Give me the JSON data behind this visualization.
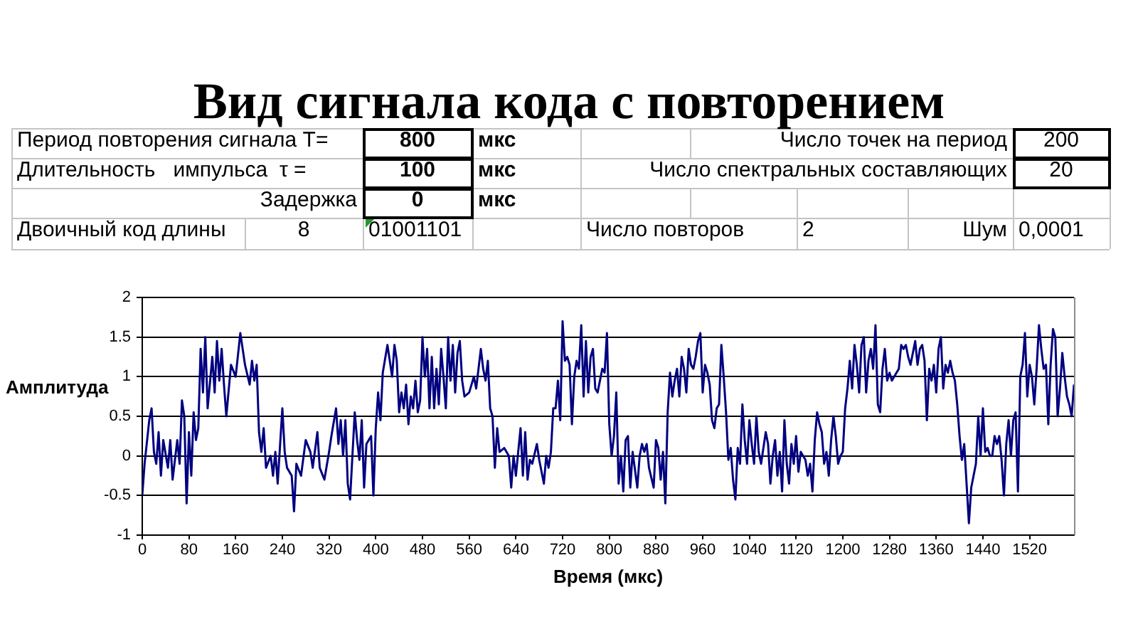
{
  "chart_data": {
    "type": "line",
    "title": "Вид сигнала кода с повторением",
    "xlabel": "Время (мкс)",
    "ylabel": "Амплитуда",
    "annotations": [
      "Период повторения сигнала T=",
      "800",
      "мкс",
      "Число точек на период",
      "200",
      "Длительность   импульса  τ =",
      "100",
      "мкс",
      "Число спектральных составляющих",
      "20",
      "Задержка",
      "0",
      "мкс",
      "Двоичный код длины",
      "8",
      "01001101",
      "Число повторов",
      "2",
      "Шум",
      "0,0001"
    ],
    "x": [
      0,
      4,
      12,
      16,
      20,
      24,
      28,
      32,
      36,
      44,
      48,
      52,
      60,
      64,
      68,
      72,
      76,
      80,
      84,
      88,
      92,
      96,
      100,
      104,
      108,
      112,
      120,
      124,
      128,
      132,
      136,
      140,
      144,
      152,
      160,
      168,
      176,
      184,
      188,
      192,
      196,
      200,
      204,
      208,
      212,
      220,
      224,
      228,
      232,
      240,
      244,
      248,
      256,
      260,
      264,
      272,
      280,
      288,
      292,
      300,
      304,
      312,
      320,
      324,
      332,
      336,
      340,
      344,
      348,
      352,
      356,
      364,
      368,
      372,
      376,
      380,
      384,
      392,
      396,
      400,
      404,
      408,
      412,
      420,
      428,
      432,
      436,
      440,
      444,
      448,
      452,
      456,
      460,
      464,
      468,
      472,
      476,
      480,
      484,
      488,
      492,
      496,
      500,
      504,
      508,
      512,
      516,
      520,
      524,
      528,
      532,
      536,
      540,
      544,
      548,
      552,
      560,
      568,
      572,
      580,
      584,
      588,
      592,
      596,
      600,
      604,
      608,
      612,
      620,
      628,
      632,
      636,
      640,
      644,
      648,
      652,
      656,
      660,
      664,
      668,
      676,
      680,
      684,
      688,
      692,
      696,
      700,
      704,
      708,
      712,
      716,
      720,
      724,
      728,
      732,
      736,
      740,
      744,
      748,
      752,
      756,
      760,
      764,
      768,
      772,
      776,
      780,
      788,
      792,
      796,
      800,
      804,
      808,
      812,
      816,
      820,
      824,
      828,
      832,
      836,
      840,
      848,
      852,
      856,
      860,
      864,
      868,
      876,
      880,
      884,
      888,
      892,
      896,
      900,
      904,
      908,
      912,
      916,
      920,
      924,
      928,
      932,
      936,
      940,
      944,
      948,
      952,
      956,
      960,
      964,
      968,
      972,
      976,
      980,
      984,
      988,
      992,
      996,
      1000,
      1004,
      1008,
      1012,
      1016,
      1020,
      1024,
      1028,
      1032,
      1036,
      1040,
      1044,
      1048,
      1052,
      1056,
      1060,
      1068,
      1072,
      1076,
      1080,
      1084,
      1088,
      1092,
      1096,
      1100,
      1104,
      1108,
      1112,
      1116,
      1120,
      1124,
      1128,
      1136,
      1140,
      1144,
      1148,
      1152,
      1156,
      1160,
      1164,
      1168,
      1172,
      1176,
      1180,
      1184,
      1188,
      1192,
      1196,
      1200,
      1204,
      1208,
      1212,
      1216,
      1220,
      1224,
      1228,
      1232,
      1236,
      1240,
      1244,
      1248,
      1252,
      1256,
      1260,
      1264,
      1268,
      1272,
      1276,
      1280,
      1284,
      1292,
      1296,
      1300,
      1304,
      1308,
      1312,
      1316,
      1320,
      1324,
      1328,
      1332,
      1336,
      1340,
      1344,
      1348,
      1352,
      1356,
      1360,
      1364,
      1368,
      1372,
      1376,
      1380,
      1384,
      1388,
      1392,
      1396,
      1400,
      1404,
      1408,
      1412,
      1416,
      1420,
      1424,
      1428,
      1432,
      1436,
      1440,
      1444,
      1448,
      1452,
      1456,
      1460,
      1464,
      1468,
      1472,
      1476,
      1480,
      1484,
      1488,
      1492,
      1496,
      1500,
      1504,
      1508,
      1512,
      1516,
      1520,
      1524,
      1528,
      1532,
      1536,
      1540,
      1544,
      1548,
      1552,
      1556,
      1560,
      1564,
      1568,
      1572,
      1576,
      1580,
      1584,
      1588,
      1592,
      1596
    ],
    "values": [
      -0.5,
      -0.1,
      0.45,
      0.6,
      0.05,
      -0.1,
      0.3,
      -0.25,
      0.2,
      -0.15,
      0.2,
      -0.3,
      0.2,
      -0.1,
      0.7,
      0.5,
      -0.6,
      0.3,
      -0.25,
      0.55,
      0.2,
      0.35,
      1.35,
      0.8,
      1.5,
      0.6,
      1.25,
      0.8,
      1.45,
      0.95,
      1.35,
      0.9,
      0.5,
      1.15,
      1.0,
      1.55,
      1.15,
      0.9,
      1.2,
      0.95,
      1.15,
      0.3,
      0.05,
      0.35,
      -0.15,
      0,
      -0.25,
      0.05,
      -0.35,
      0.6,
      0.05,
      -0.15,
      -0.25,
      -0.7,
      -0.1,
      -0.25,
      0.2,
      0.05,
      -0.15,
      0.3,
      -0.15,
      -0.3,
      0.05,
      0.25,
      0.6,
      0.15,
      0.45,
      0,
      0.45,
      -0.35,
      -0.55,
      0.55,
      0.2,
      -0.05,
      0.45,
      -0.4,
      0.15,
      0.25,
      -0.5,
      0.35,
      0.8,
      0.45,
      1.05,
      1.4,
      1.0,
      1.4,
      1.2,
      0.55,
      0.8,
      0.6,
      0.9,
      0.4,
      0.75,
      0.6,
      0.95,
      0.55,
      0.7,
      1.5,
      1.0,
      1.35,
      0.6,
      1.25,
      0.6,
      1.1,
      0.65,
      1.35,
      1.0,
      0.6,
      1.5,
      0.95,
      1.4,
      0.8,
      1.3,
      1.45,
      0.95,
      0.75,
      0.8,
      1.0,
      0.85,
      1.35,
      1.1,
      0.95,
      1.2,
      0.6,
      0.5,
      -0.15,
      0.35,
      0.05,
      0.1,
      0,
      -0.4,
      0,
      -0.25,
      0.05,
      0.35,
      -0.25,
      0.3,
      -0.3,
      -0.05,
      -0.1,
      0.15,
      -0.05,
      -0.2,
      -0.35,
      0,
      -0.15,
      0.05,
      0.6,
      0.6,
      0.95,
      0.45,
      1.7,
      1.2,
      1.25,
      1.15,
      0.4,
      1.0,
      1.2,
      1.1,
      1.65,
      0.75,
      1.45,
      0.8,
      1.25,
      1.35,
      0.85,
      0.8,
      1.1,
      1.05,
      1.55,
      0.4,
      0,
      0.25,
      0.8,
      -0.35,
      0,
      -0.45,
      0.2,
      0.25,
      -0.4,
      0.05,
      -0.4,
      0,
      0.15,
      0.05,
      0.15,
      -0.15,
      -0.4,
      0.2,
      0.1,
      -0.3,
      0.05,
      -0.6,
      0.55,
      1.05,
      0.75,
      0.95,
      1.1,
      0.75,
      1.25,
      1.1,
      0.8,
      1.35,
      1.15,
      1.1,
      1.25,
      1.45,
      1.55,
      0.8,
      1.15,
      1.05,
      0.9,
      0.45,
      0.35,
      0.6,
      0.65,
      1.4,
      1.0,
      0.55,
      -0.05,
      0.1,
      -0.3,
      -0.55,
      0.1,
      -0.1,
      0.65,
      0.2,
      -0.1,
      0.45,
      0.15,
      -0.1,
      0.5,
      0.05,
      -0.1,
      0.3,
      0.15,
      -0.35,
      0,
      0.2,
      -0.25,
      0.05,
      -0.45,
      0.45,
      -0.1,
      -0.35,
      0.15,
      -0.1,
      0.25,
      -0.2,
      0.05,
      -0.05,
      -0.25,
      -0.1,
      -0.45,
      0.2,
      0.55,
      0.4,
      0.3,
      -0.1,
      0.05,
      -0.25,
      0.2,
      0.5,
      0.25,
      -0.1,
      0,
      0.05,
      0.6,
      0.85,
      1.2,
      0.85,
      1.4,
      1.15,
      0.8,
      1.4,
      1.5,
      0.8,
      1.2,
      1.35,
      1.1,
      1.65,
      0.65,
      0.55,
      1.1,
      1.35,
      0.95,
      1.05,
      0.95,
      1.05,
      1.1,
      1.4,
      1.35,
      1.4,
      1.25,
      1.15,
      1.3,
      1.45,
      1.15,
      1.35,
      1.4,
      1.2,
      0.45,
      1.1,
      0.95,
      1.15,
      0.8,
      1.35,
      1.5,
      0.85,
      1.15,
      1.05,
      1.2,
      1.05,
      0.95,
      0.65,
      0.25,
      -0.05,
      0.15,
      -0.35,
      -0.85,
      -0.4,
      -0.25,
      -0.1,
      0.5,
      0,
      0.6,
      0.05,
      0.1,
      0,
      0,
      0.25,
      0.15,
      0.25,
      -0.05,
      -0.5,
      0.15,
      0.45,
      0,
      0.45,
      0.55,
      -0.45,
      1.0,
      1.15,
      1.55,
      0.75,
      1.15,
      1.0,
      0.65,
      1.1,
      1.65,
      1.35,
      1.1,
      1.15,
      0.4,
      1.15,
      1.6,
      1.5,
      0.5,
      0.85,
      1.3,
      1.0,
      0.75,
      0.65,
      0.5,
      0.9
    ],
    "color": "#000080",
    "xlim": [
      0,
      1596
    ],
    "xticks": [
      0,
      80,
      160,
      240,
      320,
      400,
      480,
      560,
      640,
      720,
      800,
      880,
      960,
      1040,
      1120,
      1200,
      1280,
      1360,
      1440,
      1520
    ],
    "ylim": [
      -1,
      2
    ],
    "yticks": [
      -1,
      -0.5,
      0,
      0.5,
      1,
      1.5,
      2
    ],
    "grid": "y",
    "legend": false,
    "marker": "none",
    "line_style": "solid"
  }
}
